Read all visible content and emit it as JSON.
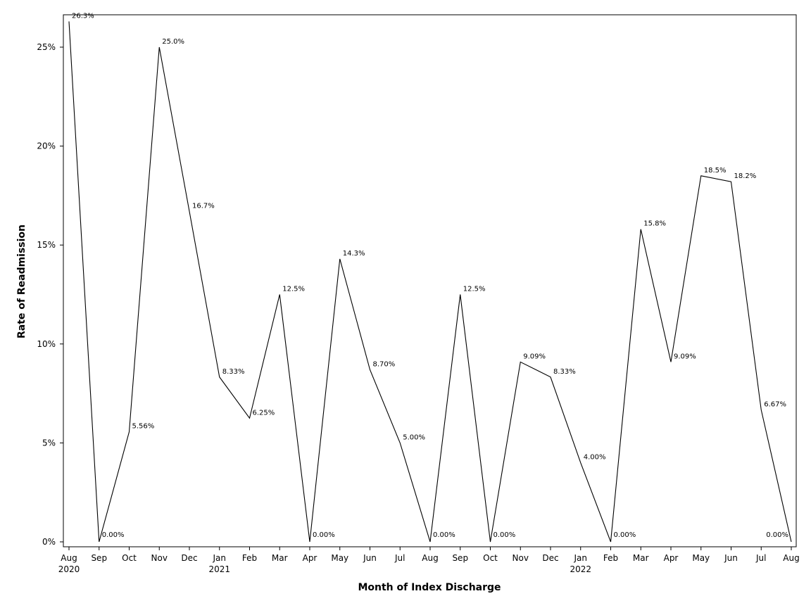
{
  "chart_data": {
    "type": "line",
    "xlabel": "Month of Index Discharge",
    "ylabel": "Rate of Readmission",
    "ylim": [
      0,
      26.3
    ],
    "grid": false,
    "x": [
      "Aug 2020",
      "Sep 2020",
      "Oct 2020",
      "Nov 2020",
      "Dec 2020",
      "Jan 2021",
      "Feb 2021",
      "Mar 2021",
      "Apr 2021",
      "May 2021",
      "Jun 2021",
      "Jul 2021",
      "Aug 2021",
      "Sep 2021",
      "Oct 2021",
      "Nov 2021",
      "Dec 2021",
      "Jan 2022",
      "Feb 2022",
      "Mar 2022",
      "Apr 2022",
      "May 2022",
      "Jun 2022",
      "Jul 2022",
      "Aug 2022"
    ],
    "x_tick_labels": [
      {
        "month": "Aug",
        "year": "2020"
      },
      {
        "month": "Sep",
        "year": ""
      },
      {
        "month": "Oct",
        "year": ""
      },
      {
        "month": "Nov",
        "year": ""
      },
      {
        "month": "Dec",
        "year": ""
      },
      {
        "month": "Jan",
        "year": "2021"
      },
      {
        "month": "Feb",
        "year": ""
      },
      {
        "month": "Mar",
        "year": ""
      },
      {
        "month": "Apr",
        "year": ""
      },
      {
        "month": "May",
        "year": ""
      },
      {
        "month": "Jun",
        "year": ""
      },
      {
        "month": "Jul",
        "year": ""
      },
      {
        "month": "Aug",
        "year": ""
      },
      {
        "month": "Sep",
        "year": ""
      },
      {
        "month": "Oct",
        "year": ""
      },
      {
        "month": "Nov",
        "year": ""
      },
      {
        "month": "Dec",
        "year": ""
      },
      {
        "month": "Jan",
        "year": "2022"
      },
      {
        "month": "Feb",
        "year": ""
      },
      {
        "month": "Mar",
        "year": ""
      },
      {
        "month": "Apr",
        "year": ""
      },
      {
        "month": "May",
        "year": ""
      },
      {
        "month": "Jun",
        "year": ""
      },
      {
        "month": "Jul",
        "year": ""
      },
      {
        "month": "Aug",
        "year": ""
      }
    ],
    "y_ticks": [
      0,
      5,
      10,
      15,
      20,
      25
    ],
    "y_tick_labels": [
      "0%",
      "5%",
      "10%",
      "15%",
      "20%",
      "25%"
    ],
    "series": [
      {
        "values": [
          26.3,
          0,
          5.56,
          25.0,
          16.7,
          8.33,
          6.25,
          12.5,
          0,
          14.3,
          8.7,
          5.0,
          0,
          12.5,
          0,
          9.09,
          8.33,
          4.0,
          0,
          15.8,
          9.09,
          18.5,
          18.2,
          6.67,
          0
        ],
        "labels": [
          "26.3%",
          "0.00%",
          "5.56%",
          "25.0%",
          "16.7%",
          "8.33%",
          "6.25%",
          "12.5%",
          "0.00%",
          "14.3%",
          "8.70%",
          "5.00%",
          "0.00%",
          "12.5%",
          "0.00%",
          "9.09%",
          "8.33%",
          "4.00%",
          "0.00%",
          "15.8%",
          "9.09%",
          "18.5%",
          "18.2%",
          "6.67%",
          "0.00%"
        ],
        "color": "#000000"
      }
    ]
  }
}
